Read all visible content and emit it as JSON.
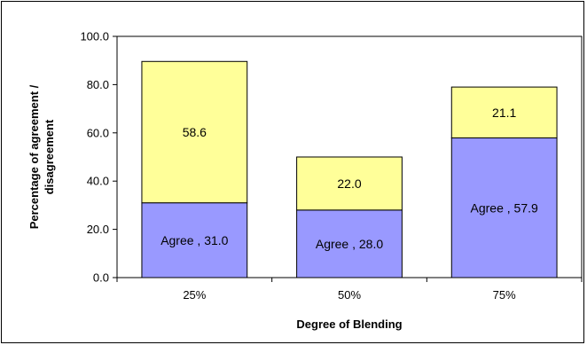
{
  "chart_data": {
    "type": "bar",
    "stacked": true,
    "categories": [
      "25%",
      "50%",
      "75%"
    ],
    "series": [
      {
        "name": "Agree",
        "values": [
          31.0,
          28.0,
          57.9
        ],
        "labels": [
          "Agree , 31.0",
          "Agree , 28.0",
          "Agree , 57.9"
        ],
        "color": "#9999ff"
      },
      {
        "values": [
          58.6,
          22.0,
          21.1
        ],
        "labels": [
          "58.6",
          "22.0",
          "21.1"
        ],
        "color": "#ffff99"
      }
    ],
    "xlabel": "Degree of Blending",
    "ylabel": "Percentage of agreement / disagreement",
    "ylim": [
      0,
      100
    ],
    "yticks": [
      "0.0",
      "20.0",
      "40.0",
      "60.0",
      "80.0",
      "100.0"
    ],
    "grid": false,
    "legend": "none"
  }
}
